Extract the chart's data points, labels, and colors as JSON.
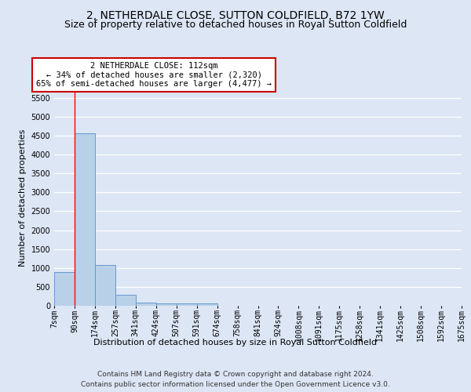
{
  "title": "2, NETHERDALE CLOSE, SUTTON COLDFIELD, B72 1YW",
  "subtitle": "Size of property relative to detached houses in Royal Sutton Coldfield",
  "xlabel": "Distribution of detached houses by size in Royal Sutton Coldfield",
  "ylabel": "Number of detached properties",
  "bar_values": [
    900,
    4550,
    1075,
    300,
    75,
    60,
    60,
    60,
    0,
    0,
    0,
    0,
    0,
    0,
    0,
    0,
    0,
    0,
    0,
    0
  ],
  "bar_color": "#b8d0e8",
  "bar_edge_color": "#6699cc",
  "x_labels": [
    "7sqm",
    "90sqm",
    "174sqm",
    "257sqm",
    "341sqm",
    "424sqm",
    "507sqm",
    "591sqm",
    "674sqm",
    "758sqm",
    "841sqm",
    "924sqm",
    "1008sqm",
    "1091sqm",
    "1175sqm",
    "1258sqm",
    "1341sqm",
    "1425sqm",
    "1508sqm",
    "1592sqm",
    "1675sqm"
  ],
  "ylim": [
    0,
    5700
  ],
  "yticks": [
    0,
    500,
    1000,
    1500,
    2000,
    2500,
    3000,
    3500,
    4000,
    4500,
    5000,
    5500
  ],
  "red_line_x": 1,
  "annotation_line1": "2 NETHERDALE CLOSE: 112sqm",
  "annotation_line2": "← 34% of detached houses are smaller (2,320)",
  "annotation_line3": "65% of semi-detached houses are larger (4,477) →",
  "annotation_box_color": "#ffffff",
  "annotation_box_edge": "#cc0000",
  "footer_line1": "Contains HM Land Registry data © Crown copyright and database right 2024.",
  "footer_line2": "Contains public sector information licensed under the Open Government Licence v3.0.",
  "background_color": "#dce6f5",
  "grid_color": "#ffffff",
  "title_fontsize": 10,
  "subtitle_fontsize": 9,
  "tick_fontsize": 7,
  "label_fontsize": 8,
  "footer_fontsize": 6.5
}
